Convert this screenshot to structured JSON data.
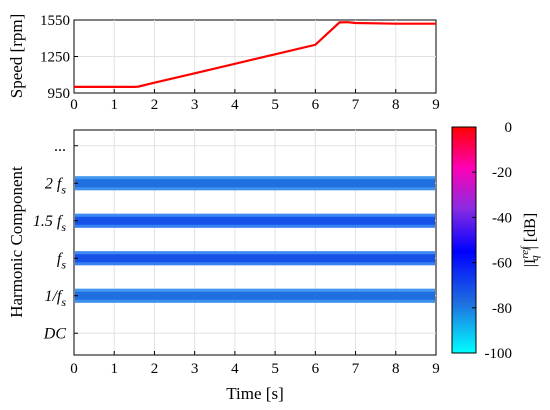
{
  "chart_data": [
    {
      "type": "line",
      "ylabel": "Speed [rpm]",
      "xlim": [
        0,
        9
      ],
      "ylim": [
        950,
        1550
      ],
      "xticks": [
        "0",
        "1",
        "2",
        "3",
        "4",
        "5",
        "6",
        "7",
        "8",
        "9"
      ],
      "yticks": [
        "950",
        "1250",
        "1550"
      ],
      "grid": true,
      "series": [
        {
          "color": "#ff0000",
          "x": [
            0,
            1.5,
            1.6,
            2.0,
            3.0,
            4.0,
            5.0,
            6.0,
            6.6,
            6.8,
            7.0,
            8.0,
            9.0
          ],
          "y": [
            1000,
            1000,
            1003,
            1035,
            1112,
            1190,
            1268,
            1346,
            1530,
            1532,
            1525,
            1520,
            1520
          ]
        }
      ]
    },
    {
      "type": "heatmap",
      "xlabel": "Time [s]",
      "ylabel": "Harmonic Component",
      "xlim": [
        0,
        9
      ],
      "xticks": [
        "0",
        "1",
        "2",
        "3",
        "4",
        "5",
        "6",
        "7",
        "8",
        "9"
      ],
      "ytick_labels": [
        {
          "main": "...",
          "sub": ""
        },
        {
          "main": "2 f",
          "sub": "s"
        },
        {
          "main": "1.5 f",
          "sub": "s"
        },
        {
          "main": "f",
          "sub": "s"
        },
        {
          "main": "1/f",
          "sub": "s"
        },
        {
          "main": "DC",
          "sub": ""
        }
      ],
      "grid": true,
      "bands": [
        {
          "name": "2 fs",
          "level_db": -78
        },
        {
          "name": "1.5 fs",
          "level_db": -72
        },
        {
          "name": "fs",
          "level_db": -72
        },
        {
          "name": "1/fs",
          "level_db": -78
        }
      ],
      "colorbar": {
        "label_main": "|I",
        "label_sup": "ref",
        "label_sub": "q",
        "label_tail": "| [dB]",
        "range": [
          -100,
          0
        ],
        "ticks": [
          "0",
          "-20",
          "-40",
          "-60",
          "-80",
          "-100"
        ],
        "colors": [
          "#ff0000",
          "#ff00b4",
          "#8a2be2",
          "#0000ff",
          "#1f6fe0",
          "#00ffff"
        ]
      }
    }
  ]
}
